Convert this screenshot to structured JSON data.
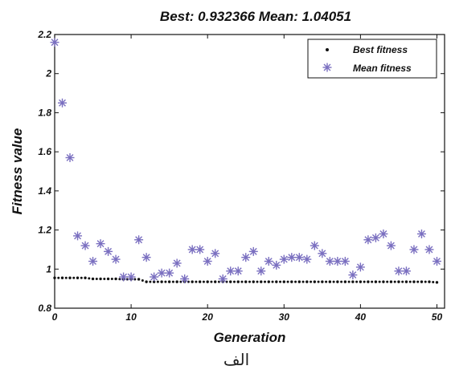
{
  "chart_data": {
    "type": "scatter",
    "title": "Best: 0.932366 Mean: 1.04051",
    "xlabel": "Generation",
    "ylabel": "Fitness value",
    "xlim": [
      0,
      51
    ],
    "ylim": [
      0.8,
      2.2
    ],
    "xticks": [
      "0",
      "10",
      "20",
      "30",
      "40",
      "50"
    ],
    "yticks": [
      "0.8",
      "1",
      "1.2",
      "1.4",
      "1.6",
      "1.8",
      "2",
      "2.2"
    ],
    "legend_position": "top-right",
    "colors": {
      "best": "#111111",
      "mean": "#7a6fc0"
    },
    "series": [
      {
        "name": "Best fitness",
        "marker": "dot",
        "x": [
          0,
          1,
          2,
          3,
          4,
          5,
          6,
          7,
          8,
          9,
          10,
          11,
          12,
          13,
          14,
          15,
          16,
          17,
          18,
          19,
          20,
          21,
          22,
          23,
          24,
          25,
          26,
          27,
          28,
          29,
          30,
          31,
          32,
          33,
          34,
          35,
          36,
          37,
          38,
          39,
          40,
          41,
          42,
          43,
          44,
          45,
          46,
          47,
          48,
          49,
          50
        ],
        "y": [
          0.955,
          0.955,
          0.955,
          0.955,
          0.955,
          0.95,
          0.95,
          0.95,
          0.95,
          0.948,
          0.948,
          0.948,
          0.935,
          0.935,
          0.935,
          0.935,
          0.935,
          0.935,
          0.935,
          0.935,
          0.935,
          0.935,
          0.935,
          0.935,
          0.935,
          0.935,
          0.935,
          0.935,
          0.935,
          0.935,
          0.935,
          0.935,
          0.935,
          0.935,
          0.935,
          0.935,
          0.935,
          0.935,
          0.935,
          0.935,
          0.935,
          0.935,
          0.935,
          0.935,
          0.935,
          0.935,
          0.935,
          0.935,
          0.935,
          0.935,
          0.932
        ]
      },
      {
        "name": "Mean fitness",
        "marker": "star",
        "x": [
          0,
          1,
          2,
          3,
          4,
          5,
          6,
          7,
          8,
          9,
          10,
          11,
          12,
          13,
          14,
          15,
          16,
          17,
          18,
          19,
          20,
          21,
          22,
          23,
          24,
          25,
          26,
          27,
          28,
          29,
          30,
          31,
          32,
          33,
          34,
          35,
          36,
          37,
          38,
          39,
          40,
          41,
          42,
          43,
          44,
          45,
          46,
          47,
          48,
          49,
          50
        ],
        "y": [
          2.16,
          1.85,
          1.57,
          1.17,
          1.12,
          1.04,
          1.13,
          1.09,
          1.05,
          0.96,
          0.96,
          1.15,
          1.06,
          0.96,
          0.98,
          0.98,
          1.03,
          0.95,
          1.1,
          1.1,
          1.04,
          1.08,
          0.95,
          0.99,
          0.99,
          1.06,
          1.09,
          0.99,
          1.04,
          1.02,
          1.05,
          1.06,
          1.06,
          1.05,
          1.12,
          1.08,
          1.04,
          1.04,
          1.04,
          0.97,
          1.01,
          1.15,
          1.16,
          1.18,
          1.12,
          0.99,
          0.99,
          1.1,
          1.18,
          1.1,
          1.04
        ]
      }
    ]
  },
  "caption": "الف"
}
